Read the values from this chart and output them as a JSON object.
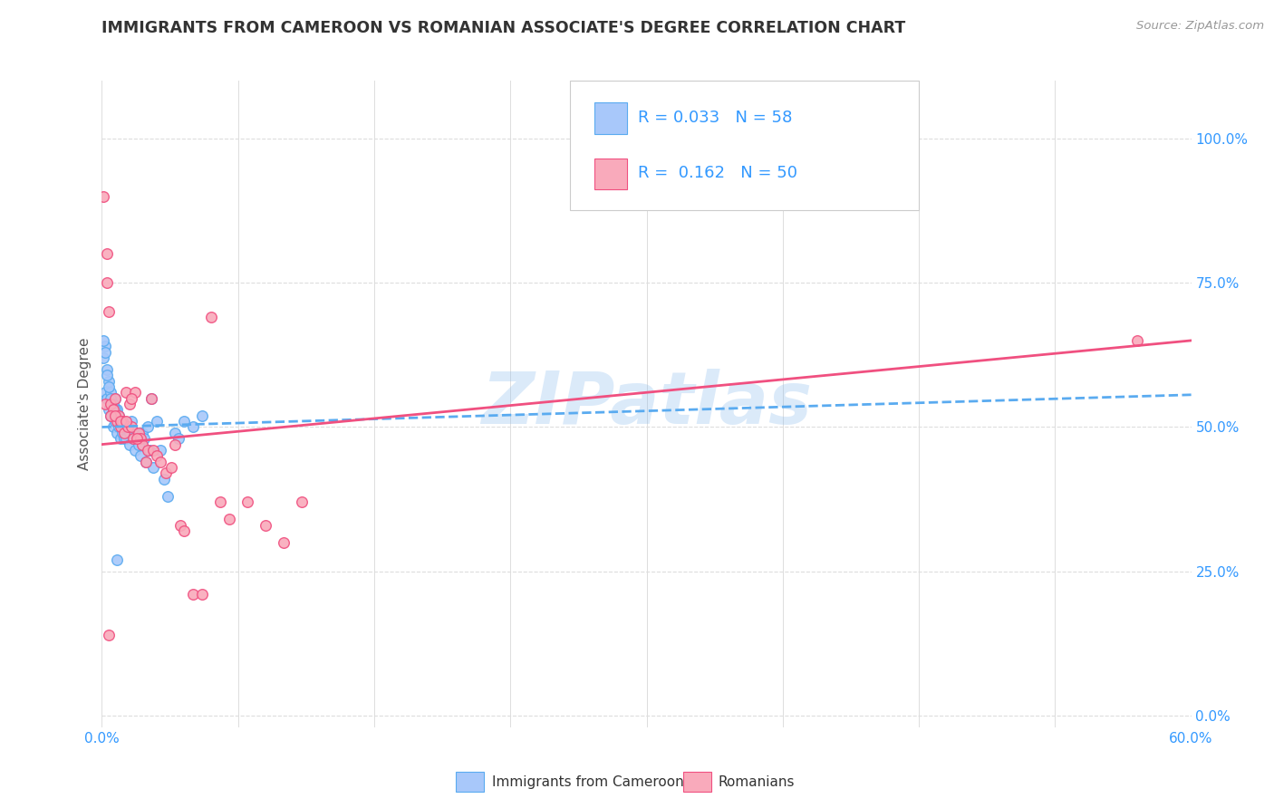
{
  "title": "IMMIGRANTS FROM CAMEROON VS ROMANIAN ASSOCIATE'S DEGREE CORRELATION CHART",
  "source": "Source: ZipAtlas.com",
  "ylabel": "Associate's Degree",
  "right_yticks": [
    "0.0%",
    "25.0%",
    "50.0%",
    "75.0%",
    "100.0%"
  ],
  "right_ytick_vals": [
    0.0,
    0.25,
    0.5,
    0.75,
    1.0
  ],
  "watermark": "ZIPatlas",
  "cameroon_color": "#a8c8fa",
  "romanian_color": "#f9aabb",
  "trendline_cameroon_color": "#5aabf0",
  "trendline_romanian_color": "#f05080",
  "legend_text_color": "#3399ff",
  "title_color": "#333333",
  "source_color": "#999999",
  "grid_color": "#dddddd",
  "background_color": "#ffffff",
  "cameroon_x": [
    0.001,
    0.002,
    0.002,
    0.003,
    0.003,
    0.004,
    0.004,
    0.005,
    0.005,
    0.006,
    0.006,
    0.007,
    0.007,
    0.008,
    0.008,
    0.009,
    0.009,
    0.01,
    0.01,
    0.011,
    0.011,
    0.012,
    0.012,
    0.013,
    0.013,
    0.014,
    0.015,
    0.015,
    0.016,
    0.017,
    0.018,
    0.019,
    0.02,
    0.021,
    0.022,
    0.023,
    0.024,
    0.025,
    0.026,
    0.027,
    0.028,
    0.03,
    0.032,
    0.034,
    0.036,
    0.04,
    0.042,
    0.045,
    0.05,
    0.055,
    0.001,
    0.002,
    0.003,
    0.004,
    0.005,
    0.006,
    0.007,
    0.008
  ],
  "cameroon_y": [
    0.62,
    0.64,
    0.56,
    0.6,
    0.55,
    0.58,
    0.53,
    0.56,
    0.52,
    0.53,
    0.5,
    0.55,
    0.51,
    0.53,
    0.49,
    0.52,
    0.5,
    0.51,
    0.48,
    0.51,
    0.49,
    0.5,
    0.48,
    0.5,
    0.48,
    0.5,
    0.49,
    0.47,
    0.51,
    0.48,
    0.46,
    0.49,
    0.47,
    0.45,
    0.49,
    0.48,
    0.44,
    0.5,
    0.46,
    0.55,
    0.43,
    0.51,
    0.46,
    0.41,
    0.38,
    0.49,
    0.48,
    0.51,
    0.5,
    0.52,
    0.65,
    0.63,
    0.59,
    0.57,
    0.55,
    0.54,
    0.53,
    0.27
  ],
  "romanian_x": [
    0.001,
    0.002,
    0.003,
    0.004,
    0.005,
    0.006,
    0.007,
    0.008,
    0.009,
    0.01,
    0.011,
    0.012,
    0.013,
    0.014,
    0.015,
    0.016,
    0.017,
    0.018,
    0.02,
    0.021,
    0.022,
    0.024,
    0.025,
    0.027,
    0.028,
    0.03,
    0.032,
    0.035,
    0.038,
    0.04,
    0.043,
    0.045,
    0.05,
    0.055,
    0.06,
    0.065,
    0.07,
    0.08,
    0.09,
    0.1,
    0.11,
    0.003,
    0.005,
    0.007,
    0.01,
    0.013,
    0.016,
    0.019,
    0.57,
    0.004
  ],
  "romanian_y": [
    0.9,
    0.54,
    0.8,
    0.7,
    0.54,
    0.53,
    0.55,
    0.51,
    0.52,
    0.5,
    0.51,
    0.49,
    0.56,
    0.5,
    0.54,
    0.5,
    0.48,
    0.56,
    0.49,
    0.48,
    0.47,
    0.44,
    0.46,
    0.55,
    0.46,
    0.45,
    0.44,
    0.42,
    0.43,
    0.47,
    0.33,
    0.32,
    0.21,
    0.21,
    0.69,
    0.37,
    0.34,
    0.37,
    0.33,
    0.3,
    0.37,
    0.75,
    0.52,
    0.52,
    0.51,
    0.51,
    0.55,
    0.48,
    0.65,
    0.14
  ],
  "xlim": [
    0.0,
    0.6
  ],
  "ylim": [
    -0.02,
    1.1
  ],
  "cam_trendline_x": [
    0.0,
    0.6
  ],
  "cam_trendline_y": [
    0.5,
    0.556
  ],
  "rom_trendline_x": [
    0.0,
    0.6
  ],
  "rom_trendline_y": [
    0.47,
    0.65
  ]
}
